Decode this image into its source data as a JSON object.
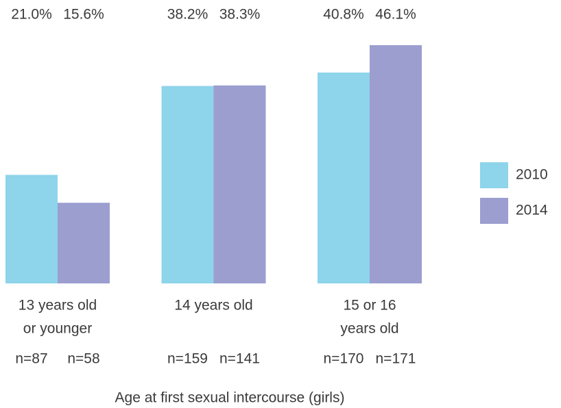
{
  "chart_data": {
    "type": "bar",
    "x_label": "Age at first sexual intercourse (girls)",
    "categories": [
      [
        "13 years old",
        "or younger"
      ],
      [
        "14 years old"
      ],
      [
        "15 or 16",
        "years old"
      ]
    ],
    "series": [
      {
        "name": "2010",
        "color": "#8ed4ea",
        "values": [
          21.0,
          38.2,
          40.8
        ],
        "value_labels": [
          "21.0%",
          "38.2%",
          "40.8%"
        ],
        "n_labels": [
          "n=87",
          "n=159",
          "n=170"
        ]
      },
      {
        "name": "2014",
        "color": "#9b9ecf",
        "values": [
          15.6,
          38.3,
          46.1
        ],
        "value_labels": [
          "15.6%",
          "38.3%",
          "46.1%"
        ],
        "n_labels": [
          "n=58",
          "n=141",
          "n=171"
        ]
      }
    ],
    "ylim": [
      0,
      50
    ],
    "legend": "right"
  }
}
